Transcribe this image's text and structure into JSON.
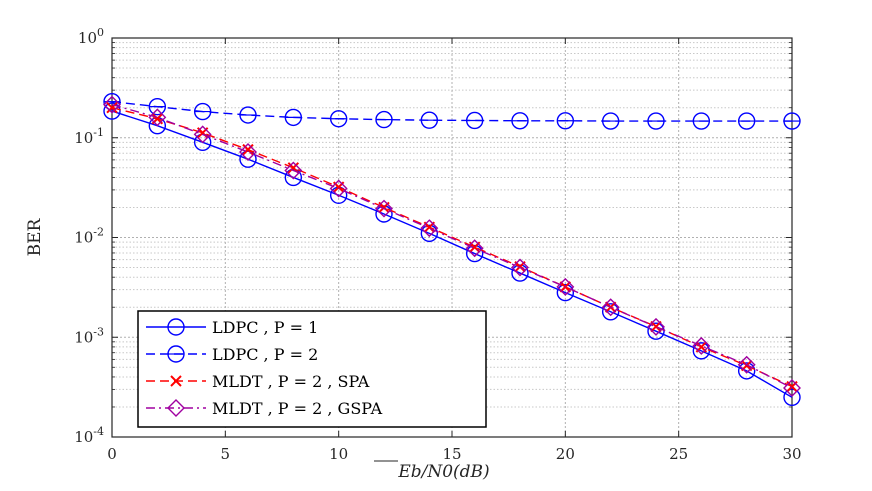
{
  "chart_data": {
    "type": "line",
    "title": "",
    "xlabel": "Eb/N0(dB)",
    "ylabel": "BER",
    "xlim": [
      0,
      30
    ],
    "ylim": [
      0.0001,
      1
    ],
    "yscale": "log",
    "grid": true,
    "legend_position": "bottom-left",
    "x_ticks": [
      0,
      5,
      10,
      15,
      20,
      25,
      30
    ],
    "x_tick_labels": [
      "0",
      "5",
      "10",
      "15",
      "20",
      "25",
      "30"
    ],
    "y_ticks": [
      1,
      0.1,
      0.01,
      0.001,
      0.0001
    ],
    "y_tick_labels": [
      {
        "base": "10",
        "exp": "0"
      },
      {
        "base": "10",
        "exp": "-1"
      },
      {
        "base": "10",
        "exp": "-2"
      },
      {
        "base": "10",
        "exp": "-3"
      },
      {
        "base": "10",
        "exp": "-4"
      }
    ],
    "x": [
      0,
      2,
      4,
      6,
      8,
      10,
      12,
      14,
      16,
      18,
      20,
      22,
      24,
      26,
      28,
      30
    ],
    "series": [
      {
        "name": "LDPC , P = 1",
        "color": "#0000ff",
        "dash": "solid",
        "marker": "circle",
        "values": [
          0.185,
          0.132,
          0.09,
          0.061,
          0.04,
          0.0265,
          0.0172,
          0.011,
          0.0069,
          0.0044,
          0.0028,
          0.0018,
          0.00115,
          0.00073,
          0.00046,
          0.00025
        ]
      },
      {
        "name": "LDPC , P = 2",
        "color": "#0000ff",
        "dash": "dashed",
        "marker": "circle-dash",
        "values": [
          0.23,
          0.205,
          0.183,
          0.169,
          0.16,
          0.155,
          0.152,
          0.15,
          0.149,
          0.148,
          0.148,
          0.147,
          0.147,
          0.147,
          0.147,
          0.147
        ]
      },
      {
        "name": "MLDT , P = 2 , SPA",
        "color": "#ff0000",
        "dash": "dashed",
        "marker": "x",
        "values": [
          0.2,
          0.155,
          0.112,
          0.076,
          0.05,
          0.032,
          0.02,
          0.0127,
          0.008,
          0.0051,
          0.0032,
          0.002,
          0.00128,
          0.0008,
          0.00052,
          0.00032
        ]
      },
      {
        "name": "MLDT , P = 2 , GSPA",
        "color": "#a000a0",
        "dash": "dashdot",
        "marker": "diamond",
        "values": [
          0.215,
          0.16,
          0.108,
          0.072,
          0.047,
          0.031,
          0.0195,
          0.0124,
          0.0078,
          0.005,
          0.0032,
          0.002,
          0.00127,
          0.00082,
          0.00053,
          0.00031
        ]
      }
    ]
  }
}
